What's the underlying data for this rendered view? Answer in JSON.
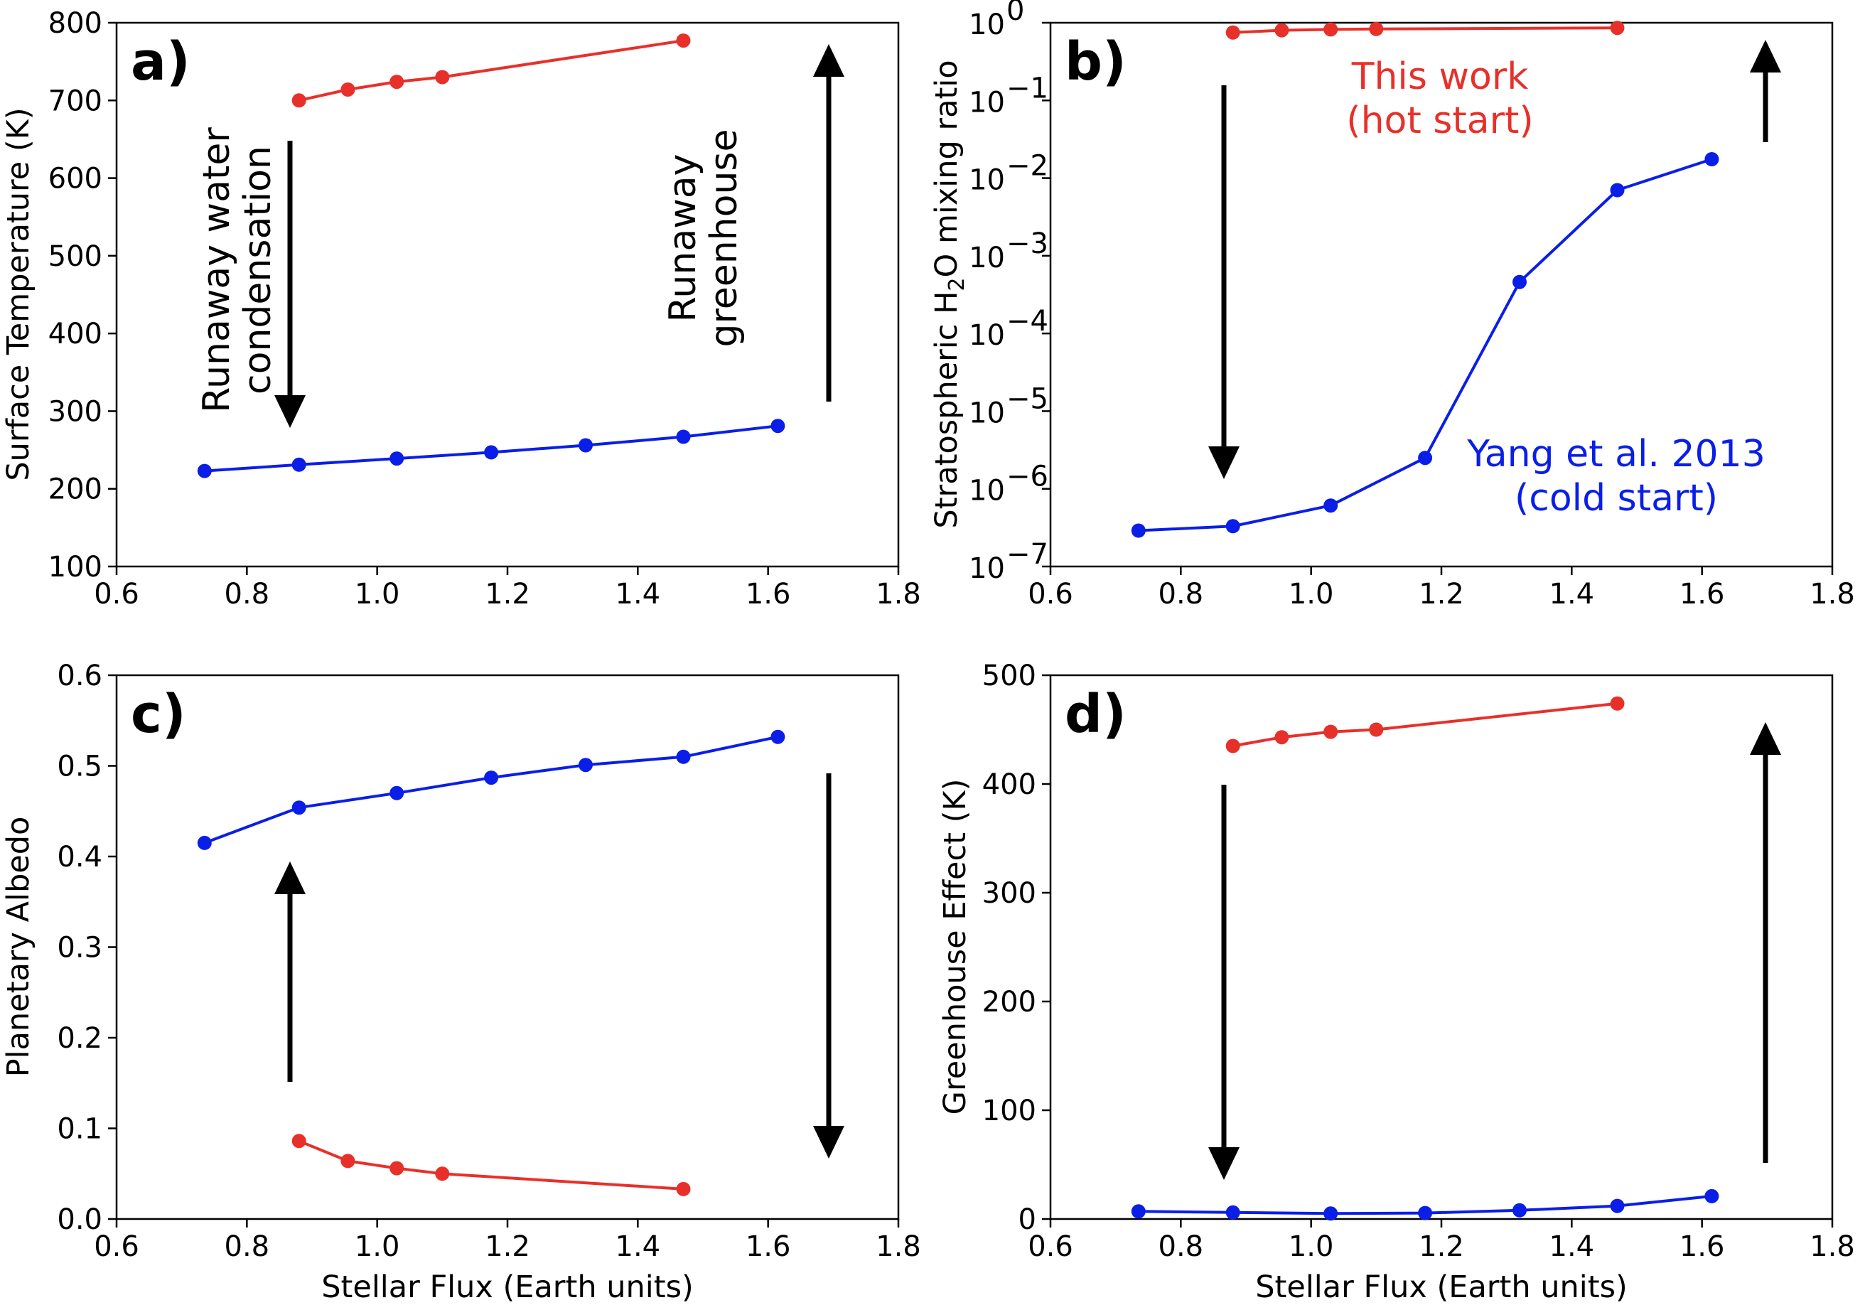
{
  "chart_data": [
    {
      "panel": "a)",
      "type": "line",
      "xlabel": "Stellar Flux (Earth units)",
      "ylabel": "Surface Temperature (K)",
      "xlim": [
        0.6,
        1.8
      ],
      "ylim": [
        100,
        800
      ],
      "yscale": "linear",
      "xticks": [
        "0.6",
        "0.8",
        "1.0",
        "1.2",
        "1.4",
        "1.6",
        "1.8"
      ],
      "yticks": [
        "100",
        "200",
        "300",
        "400",
        "500",
        "600",
        "700",
        "800"
      ],
      "series": [
        {
          "name": "This work (hot start)",
          "color": "#e8302a",
          "x": [
            0.88,
            0.955,
            1.03,
            1.1,
            1.47
          ],
          "y": [
            700,
            714,
            724,
            730,
            777
          ]
        },
        {
          "name": "Yang et al. 2013 (cold start)",
          "color": "#0a1ee8",
          "x": [
            0.735,
            0.88,
            1.03,
            1.175,
            1.32,
            1.47,
            1.615
          ],
          "y": [
            223,
            231,
            239,
            247,
            256,
            267,
            281
          ]
        }
      ],
      "annotations": [
        {
          "lines": [
            "Runaway water",
            "condensation"
          ],
          "arrow": "down"
        },
        {
          "lines": [
            "Runaway",
            "greenhouse"
          ],
          "arrow": "up"
        }
      ]
    },
    {
      "panel": "b)",
      "type": "line",
      "xlabel": "",
      "ylabel": "Stratospheric H2O mixing ratio",
      "xlim": [
        0.6,
        1.8
      ],
      "ylim": [
        1e-07,
        1
      ],
      "yscale": "log",
      "xticks": [
        "0.6",
        "0.8",
        "1.0",
        "1.2",
        "1.4",
        "1.6",
        "1.8"
      ],
      "yticks": [
        {
          "base": "10",
          "exp": "−7"
        },
        {
          "base": "10",
          "exp": "−6"
        },
        {
          "base": "10",
          "exp": "−5"
        },
        {
          "base": "10",
          "exp": "−4"
        },
        {
          "base": "10",
          "exp": "−3"
        },
        {
          "base": "10",
          "exp": "−2"
        },
        {
          "base": "10",
          "exp": "−1"
        },
        {
          "base": "10",
          "exp": "0"
        }
      ],
      "series": [
        {
          "name": "This work (hot start)",
          "color": "#e8302a",
          "x": [
            0.88,
            0.955,
            1.03,
            1.1,
            1.47
          ],
          "y": [
            0.75,
            0.8,
            0.82,
            0.83,
            0.86
          ]
        },
        {
          "name": "Yang et al. 2013 (cold start)",
          "color": "#0a1ee8",
          "x": [
            0.735,
            0.88,
            1.03,
            1.175,
            1.32,
            1.47,
            1.615
          ],
          "y": [
            2.9e-07,
            3.3e-07,
            6.1e-07,
            2.5e-06,
            0.00046,
            0.007,
            0.0175
          ]
        }
      ],
      "annotations": [
        {
          "lines": [
            "This work",
            "(hot start)"
          ],
          "color": "#e8302a"
        },
        {
          "lines": [
            "Yang et al. 2013",
            "(cold start)"
          ],
          "color": "#0a1ee8"
        }
      ]
    },
    {
      "panel": "c)",
      "type": "line",
      "xlabel": "Stellar Flux (Earth units)",
      "ylabel": "Planetary Albedo",
      "xlim": [
        0.6,
        1.8
      ],
      "ylim": [
        0.0,
        0.6
      ],
      "yscale": "linear",
      "xticks": [
        "0.6",
        "0.8",
        "1.0",
        "1.2",
        "1.4",
        "1.6",
        "1.8"
      ],
      "yticks": [
        "0.0",
        "0.1",
        "0.2",
        "0.3",
        "0.4",
        "0.5",
        "0.6"
      ],
      "series": [
        {
          "name": "This work (hot start)",
          "color": "#e8302a",
          "x": [
            0.88,
            0.955,
            1.03,
            1.1,
            1.47
          ],
          "y": [
            0.086,
            0.064,
            0.056,
            0.05,
            0.033
          ]
        },
        {
          "name": "Yang et al. 2013 (cold start)",
          "color": "#0a1ee8",
          "x": [
            0.735,
            0.88,
            1.03,
            1.175,
            1.32,
            1.47,
            1.615
          ],
          "y": [
            0.415,
            0.454,
            0.47,
            0.487,
            0.501,
            0.51,
            0.532
          ]
        }
      ]
    },
    {
      "panel": "d)",
      "type": "line",
      "xlabel": "Stellar Flux (Earth units)",
      "ylabel": "Greenhouse Effect (K)",
      "xlim": [
        0.6,
        1.8
      ],
      "ylim": [
        0,
        500
      ],
      "yscale": "linear",
      "xticks": [
        "0.6",
        "0.8",
        "1.0",
        "1.2",
        "1.4",
        "1.6",
        "1.8"
      ],
      "yticks": [
        "0",
        "100",
        "200",
        "300",
        "400",
        "500"
      ],
      "series": [
        {
          "name": "This work (hot start)",
          "color": "#e8302a",
          "x": [
            0.88,
            0.955,
            1.03,
            1.1,
            1.47
          ],
          "y": [
            435,
            443,
            448,
            450,
            474
          ]
        },
        {
          "name": "Yang et al. 2013 (cold start)",
          "color": "#0a1ee8",
          "x": [
            0.735,
            0.88,
            1.03,
            1.175,
            1.32,
            1.47,
            1.615
          ],
          "y": [
            7,
            6,
            5,
            5.5,
            8,
            12,
            21
          ]
        }
      ]
    }
  ]
}
